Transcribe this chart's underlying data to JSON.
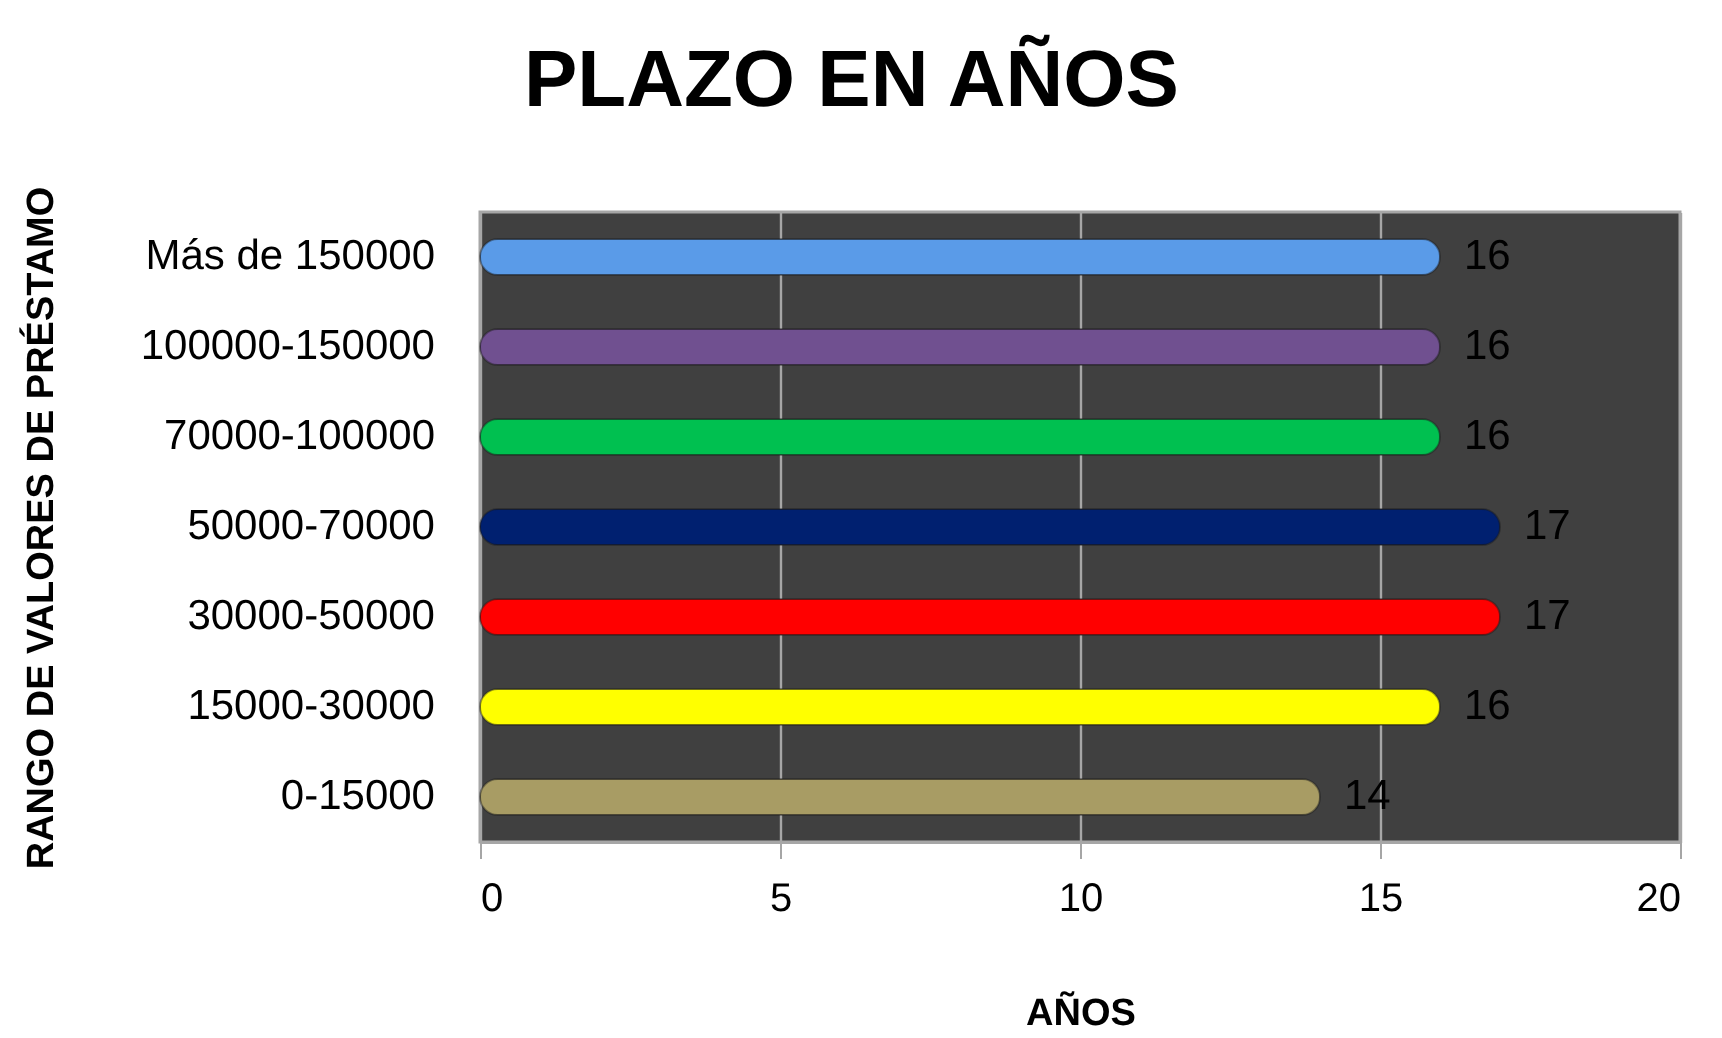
{
  "chart_data": {
    "type": "bar",
    "orientation": "horizontal",
    "title": "PLAZO EN AÑOS",
    "xlabel": "AÑOS",
    "ylabel": "RANGO DE VALORES DE PRÉSTAMO",
    "categories": [
      "Más de 150000",
      "100000-150000",
      "70000-100000",
      "50000-70000",
      "30000-50000",
      "15000-30000",
      "0-15000"
    ],
    "values": [
      16,
      16,
      16,
      17,
      17,
      16,
      14
    ],
    "colors": [
      "#5a9be8",
      "#705090",
      "#00c050",
      "#002070",
      "#ff0000",
      "#ffff00",
      "#a89c64"
    ],
    "xlim": [
      0,
      20
    ],
    "xticks": [
      0,
      5,
      10,
      15,
      20
    ],
    "grid": "x",
    "data_labels": true
  }
}
